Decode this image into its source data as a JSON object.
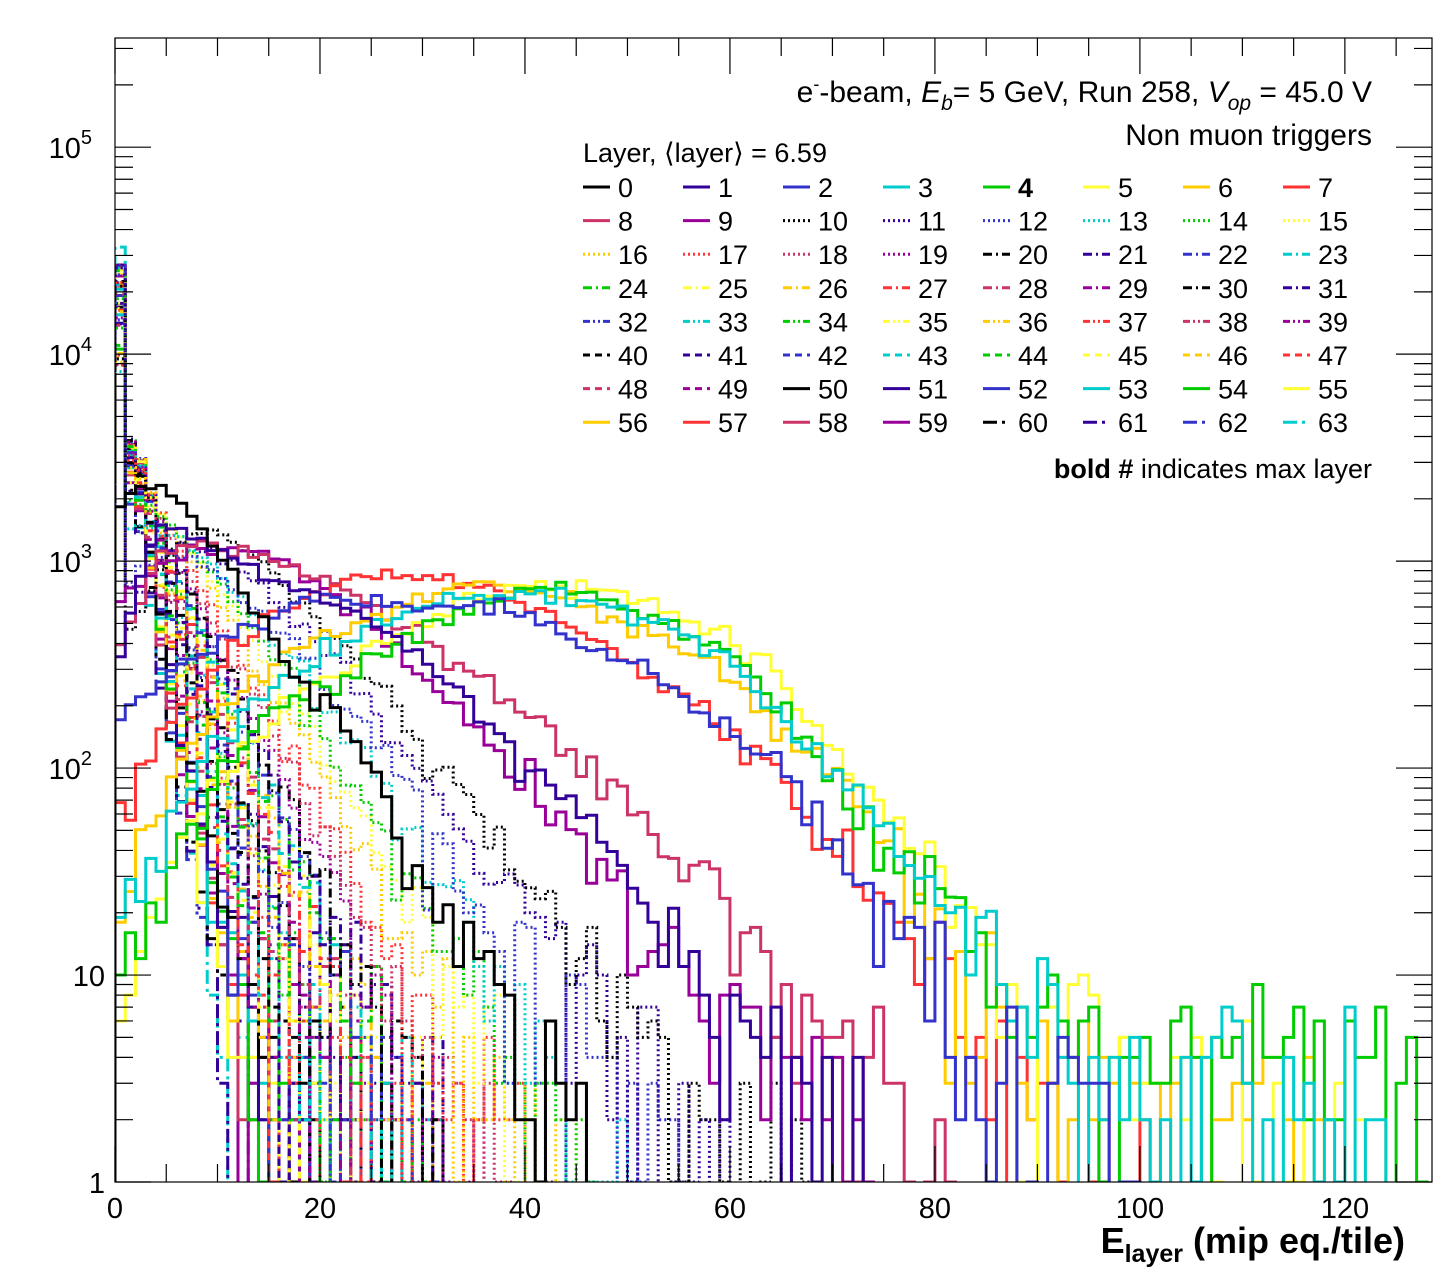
{
  "chart_data": {
    "type": "line",
    "subtype": "step-histogram",
    "title_line1": {
      "prefix": "e",
      "sup": "-",
      "mid1": "-beam, ",
      "E": "E",
      "Esub": "b",
      "mid2": "= 5 GeV, Run 258, ",
      "V": "V",
      "Vsub": "op",
      "end": " = 45.0 V"
    },
    "title_line2": "Non muon triggers",
    "legend_title": "Layer, ⟨layer⟩ = 6.59",
    "legend_note_bold": "bold #",
    "legend_note_rest": " indicates max layer",
    "max_layer": "4",
    "xlabel_main": "E",
    "xlabel_sub": "layer",
    "xlabel_rest": " (mip eq./tile)",
    "xlim": [
      0,
      128.5
    ],
    "ylim": [
      1,
      337000
    ],
    "yscale": "log",
    "x_ticks": [
      "0",
      "20",
      "40",
      "60",
      "80",
      "100",
      "120"
    ],
    "y_ticks": [
      {
        "base": "1",
        "exp": ""
      },
      {
        "base": "10",
        "exp": ""
      },
      {
        "base": "10",
        "exp": "2"
      },
      {
        "base": "10",
        "exp": "3"
      },
      {
        "base": "10",
        "exp": "4"
      },
      {
        "base": "10",
        "exp": "5"
      }
    ],
    "legend_position": "top-right",
    "palette": [
      "#000000",
      "#330099",
      "#3333cc",
      "#00cccc",
      "#00cc00",
      "#ffff33",
      "#ffcc00",
      "#ff3333",
      "#cc3366",
      "#990099"
    ],
    "series": [
      {
        "name": "0",
        "style": "solid",
        "x0": 0,
        "dx": 4,
        "values": [
          1800,
          2400,
          1600,
          800,
          350,
          230,
          120,
          40,
          20,
          12,
          4.5,
          1.6
        ]
      },
      {
        "name": "1",
        "style": "solid",
        "x0": 0,
        "dx": 4,
        "values": [
          300,
          1500,
          1300,
          1000,
          800,
          700,
          560,
          400,
          280,
          180,
          110,
          70,
          40,
          20,
          12,
          7,
          4,
          2.5,
          1.5
        ]
      },
      {
        "name": "2",
        "style": "solid",
        "x0": 0,
        "dx": 4,
        "values": [
          150,
          250,
          350,
          450,
          550,
          650,
          650,
          600,
          600,
          620,
          560,
          430,
          350,
          280,
          200,
          150,
          110,
          70,
          40,
          20,
          10,
          5,
          3,
          3,
          2,
          1
        ]
      },
      {
        "name": "3",
        "style": "solid",
        "x0": 0,
        "dx": 4,
        "values": [
          20,
          40,
          100,
          170,
          270,
          360,
          460,
          560,
          650,
          680,
          700,
          660,
          620,
          520,
          420,
          320,
          200,
          120,
          80,
          45,
          25,
          12,
          7,
          4,
          3,
          3,
          2,
          4,
          2,
          1.5,
          1.5,
          1
        ]
      },
      {
        "name": "4",
        "style": "solid",
        "x0": 0,
        "dx": 4,
        "values": [
          10,
          30,
          60,
          120,
          200,
          240,
          330,
          410,
          520,
          650,
          710,
          760,
          650,
          550,
          460,
          350,
          240,
          120,
          66,
          36,
          23,
          12,
          6,
          10,
          4,
          4,
          3.5,
          3,
          5,
          3,
          2,
          2,
          2.8
        ]
      },
      {
        "name": "5",
        "style": "solid",
        "x0": 0,
        "dx": 4,
        "values": [
          5,
          20,
          70,
          120,
          190,
          260,
          350,
          450,
          560,
          700,
          750,
          730,
          700,
          620,
          520,
          420,
          300,
          150,
          85,
          55,
          35,
          18,
          8,
          6,
          6,
          4,
          4,
          3,
          3,
          2,
          1
        ]
      },
      {
        "name": "6",
        "style": "solid",
        "x0": 0,
        "dx": 4,
        "values": [
          30,
          60,
          140,
          230,
          320,
          420,
          500,
          600,
          700,
          800,
          730,
          660,
          560,
          450,
          360,
          280,
          170,
          110,
          70,
          40,
          16,
          8,
          5,
          3,
          3,
          2,
          2,
          2,
          1.5,
          1
        ]
      },
      {
        "name": "7",
        "style": "solid",
        "x0": 0,
        "dx": 4,
        "values": [
          40,
          130,
          250,
          400,
          560,
          720,
          830,
          850,
          820,
          770,
          640,
          520,
          380,
          280,
          210,
          150,
          90,
          55,
          35,
          20,
          12,
          5,
          2.5,
          2,
          1.5,
          1
        ]
      },
      {
        "name": "8",
        "style": "solid",
        "x0": 0,
        "dx": 4,
        "values": [
          300,
          1100,
          1200,
          1150,
          1000,
          900,
          650,
          480,
          350,
          250,
          180,
          120,
          80,
          50,
          30,
          17,
          8,
          5,
          4,
          3,
          1.5
        ]
      },
      {
        "name": "9",
        "style": "solid",
        "x0": 0,
        "dx": 4,
        "values": [
          600,
          900,
          1200,
          1150,
          1000,
          750,
          550,
          350,
          230,
          130,
          80,
          50,
          30,
          15,
          8,
          5,
          4,
          3,
          1
        ]
      },
      {
        "name": "10",
        "style": "dotted",
        "x0": 2,
        "dx": 4,
        "values": [
          500,
          1300,
          1400,
          1000,
          650,
          400,
          230,
          130,
          70,
          38,
          20,
          11,
          6,
          3.5,
          2,
          1.5,
          1
        ]
      },
      {
        "name": "11",
        "style": "dotted",
        "x0": 2,
        "dx": 4,
        "values": [
          700,
          1200,
          1100,
          800,
          500,
          300,
          170,
          90,
          50,
          25,
          13,
          7,
          4,
          2,
          1.2
        ]
      },
      {
        "name": "12",
        "style": "dotted",
        "x0": 2,
        "dx": 4,
        "values": [
          900,
          1100,
          900,
          600,
          380,
          220,
          120,
          60,
          30,
          15,
          8,
          4,
          2,
          1
        ]
      },
      {
        "name": "13",
        "style": "dotted",
        "x0": 2,
        "dx": 4,
        "values": [
          1500,
          1300,
          900,
          550,
          300,
          160,
          80,
          40,
          20,
          9,
          4,
          2,
          1
        ]
      },
      {
        "name": "14",
        "style": "dotted",
        "x0": 2,
        "dx": 4,
        "values": [
          2000,
          1400,
          800,
          450,
          230,
          110,
          55,
          25,
          12,
          5,
          2.5,
          1
        ]
      },
      {
        "name": "15",
        "style": "dotted",
        "x0": 2,
        "dx": 4,
        "values": [
          2500,
          1400,
          750,
          380,
          180,
          85,
          40,
          18,
          8,
          3.5,
          1.5,
          1
        ]
      },
      {
        "name": "16",
        "style": "dotted",
        "x0": 2,
        "dx": 4,
        "values": [
          2800,
          1300,
          650,
          300,
          140,
          60,
          27,
          12,
          5,
          2,
          1
        ]
      },
      {
        "name": "17",
        "style": "dotted",
        "x0": 2,
        "dx": 4,
        "values": [
          3000,
          1200,
          550,
          240,
          100,
          42,
          18,
          7,
          3,
          1.3
        ]
      },
      {
        "name": "18",
        "style": "dotted",
        "x0": 2,
        "dx": 4,
        "values": [
          3200,
          1100,
          450,
          190,
          75,
          30,
          12,
          5,
          2,
          1
        ]
      },
      {
        "name": "19",
        "style": "dotted",
        "x0": 2,
        "dx": 4,
        "values": [
          3300,
          1000,
          400,
          150,
          55,
          22,
          8,
          3,
          1.2
        ]
      },
      {
        "name": "20",
        "style": "dashdot",
        "x0": 2,
        "dx": 4,
        "values": [
          3000,
          1000,
          380,
          140,
          50,
          18,
          6,
          2
        ]
      },
      {
        "name": "21",
        "style": "dashdot",
        "x0": 2,
        "dx": 4,
        "values": [
          3200,
          950,
          340,
          120,
          42,
          15,
          5,
          1.6
        ]
      },
      {
        "name": "22",
        "style": "dashdot",
        "x0": 2,
        "dx": 4,
        "values": [
          3300,
          900,
          320,
          110,
          38,
          13,
          4.5,
          1.5
        ]
      },
      {
        "name": "23",
        "style": "dashdot",
        "x0": 2,
        "dx": 4,
        "values": [
          3400,
          880,
          300,
          100,
          35,
          12,
          4,
          1.4
        ]
      },
      {
        "name": "24",
        "style": "dashdot",
        "x0": 2,
        "dx": 4,
        "values": [
          3500,
          850,
          280,
          95,
          32,
          11,
          3.5,
          1.3
        ]
      },
      {
        "name": "25",
        "style": "dashdot",
        "x0": 2,
        "dx": 4,
        "values": [
          3500,
          820,
          260,
          88,
          30,
          10,
          3,
          1.2
        ]
      },
      {
        "name": "26",
        "style": "dashdot",
        "x0": 2,
        "dx": 4,
        "values": [
          3600,
          800,
          250,
          80,
          27,
          9,
          3,
          1
        ]
      },
      {
        "name": "27",
        "style": "dashdot",
        "x0": 2,
        "dx": 4,
        "values": [
          3600,
          760,
          230,
          72,
          24,
          8,
          2.5,
          1
        ]
      },
      {
        "name": "28",
        "style": "dashdot",
        "x0": 2,
        "dx": 4,
        "values": [
          3700,
          720,
          210,
          65,
          21,
          7,
          2,
          1
        ]
      },
      {
        "name": "29",
        "style": "dashdot",
        "x0": 2,
        "dx": 4,
        "values": [
          3700,
          700,
          190,
          58,
          18,
          6,
          2,
          1
        ]
      },
      {
        "name": "30",
        "style": "dashdot",
        "x0": 2,
        "dx": 4,
        "values": [
          3800,
          660,
          170,
          50,
          15,
          5,
          1.6
        ]
      },
      {
        "name": "31",
        "style": "dashdot",
        "x0": 2,
        "dx": 4,
        "values": [
          3800,
          640,
          160,
          46,
          13,
          4,
          1.4
        ]
      },
      {
        "name": "32",
        "style": "dashdotdot",
        "x0": 2,
        "dx": 4,
        "values": [
          3800,
          620,
          150,
          42,
          11,
          3.5,
          1.2
        ]
      },
      {
        "name": "33",
        "style": "dashdotdot",
        "x0": 2,
        "dx": 4,
        "values": [
          3800,
          600,
          145,
          40,
          10,
          3,
          1
        ]
      },
      {
        "name": "34",
        "style": "dashdotdot",
        "x0": 2,
        "dx": 4,
        "values": [
          3700,
          580,
          140,
          38,
          10,
          3,
          1
        ]
      },
      {
        "name": "35",
        "style": "dashdotdot",
        "x0": 2,
        "dx": 4,
        "values": [
          3700,
          560,
          130,
          35,
          9,
          2.5,
          1
        ]
      },
      {
        "name": "36",
        "style": "dashdotdot",
        "x0": 2,
        "dx": 4,
        "values": [
          3700,
          540,
          125,
          32,
          8,
          2.5,
          1
        ]
      },
      {
        "name": "37",
        "style": "dashdotdot",
        "x0": 2,
        "dx": 4,
        "values": [
          3600,
          520,
          120,
          30,
          8,
          2,
          1
        ]
      },
      {
        "name": "38",
        "style": "dashdotdot",
        "x0": 2,
        "dx": 4,
        "values": [
          3600,
          500,
          110,
          28,
          7,
          2,
          1
        ]
      },
      {
        "name": "39",
        "style": "dashdotdot",
        "x0": 2,
        "dx": 4,
        "values": [
          3600,
          480,
          105,
          26,
          6,
          2
        ]
      },
      {
        "name": "40",
        "style": "dashed",
        "x0": 2,
        "dx": 4,
        "values": [
          3500,
          440,
          90,
          18,
          4,
          1.2
        ]
      },
      {
        "name": "41",
        "style": "dashed",
        "x0": 2,
        "dx": 4,
        "values": [
          3500,
          420,
          85,
          17,
          3.5,
          1.1
        ]
      },
      {
        "name": "42",
        "style": "dashed",
        "x0": 2,
        "dx": 4,
        "values": [
          3500,
          400,
          80,
          15,
          3,
          1
        ]
      },
      {
        "name": "43",
        "style": "dashed",
        "x0": 2,
        "dx": 4,
        "values": [
          3400,
          380,
          75,
          14,
          3,
          1
        ]
      },
      {
        "name": "44",
        "style": "dashed",
        "x0": 2,
        "dx": 4,
        "values": [
          3400,
          360,
          70,
          13,
          2.5,
          1
        ]
      },
      {
        "name": "45",
        "style": "dashed",
        "x0": 2,
        "dx": 4,
        "values": [
          3300,
          340,
          65,
          12,
          2.5
        ]
      },
      {
        "name": "46",
        "style": "dashed",
        "x0": 2,
        "dx": 4,
        "values": [
          3300,
          320,
          60,
          11,
          2
        ]
      },
      {
        "name": "47",
        "style": "dashed",
        "x0": 2,
        "dx": 4,
        "values": [
          3200,
          300,
          55,
          10,
          2
        ]
      },
      {
        "name": "48",
        "style": "dashed",
        "x0": 2,
        "dx": 4,
        "values": [
          3200,
          280,
          50,
          9,
          1.8
        ]
      },
      {
        "name": "49",
        "style": "dashed",
        "x0": 2,
        "dx": 4,
        "values": [
          3100,
          260,
          45,
          8,
          1.6
        ]
      },
      {
        "name": "50",
        "style": "solid",
        "x0": 2,
        "dx": 4,
        "values": [
          3000,
          220,
          32,
          5,
          1
        ]
      },
      {
        "name": "51",
        "style": "solid",
        "x0": 2,
        "dx": 4,
        "values": [
          3000,
          210,
          30,
          5,
          1
        ]
      },
      {
        "name": "52",
        "style": "solid",
        "x0": 2,
        "dx": 4,
        "values": [
          2900,
          200,
          28,
          4.5,
          1
        ]
      },
      {
        "name": "53",
        "style": "solid",
        "x0": 2,
        "dx": 4,
        "values": [
          2900,
          190,
          27,
          4,
          1
        ]
      },
      {
        "name": "54",
        "style": "solid",
        "x0": 2,
        "dx": 4,
        "values": [
          2800,
          180,
          25,
          4,
          1
        ]
      },
      {
        "name": "55",
        "style": "solid",
        "x0": 2,
        "dx": 4,
        "values": [
          2800,
          170,
          24,
          3.5
        ]
      },
      {
        "name": "56",
        "style": "solid",
        "x0": 2,
        "dx": 4,
        "values": [
          2700,
          160,
          22,
          3.5
        ]
      },
      {
        "name": "57",
        "style": "solid",
        "x0": 2,
        "dx": 4,
        "values": [
          2700,
          150,
          20,
          3
        ]
      },
      {
        "name": "58",
        "style": "solid",
        "x0": 2,
        "dx": 4,
        "values": [
          2600,
          140,
          18,
          3
        ]
      },
      {
        "name": "59",
        "style": "solid",
        "x0": 2,
        "dx": 4,
        "values": [
          2500,
          130,
          17,
          2.5
        ]
      },
      {
        "name": "60",
        "style": "longdashdot",
        "x0": 2,
        "dx": 4,
        "values": [
          2200,
          110,
          12,
          1.8
        ]
      },
      {
        "name": "61",
        "style": "longdashdot",
        "x0": 2,
        "dx": 4,
        "values": [
          2100,
          100,
          10,
          1.5
        ]
      },
      {
        "name": "62",
        "style": "longdashdot",
        "x0": 2,
        "dx": 4,
        "values": [
          2000,
          95,
          10,
          1.5
        ]
      },
      {
        "name": "63",
        "style": "longdashdot",
        "x0": 2,
        "dx": 4,
        "first_bin": 33000,
        "values": [
          2000,
          90,
          9,
          1.5
        ]
      }
    ]
  }
}
